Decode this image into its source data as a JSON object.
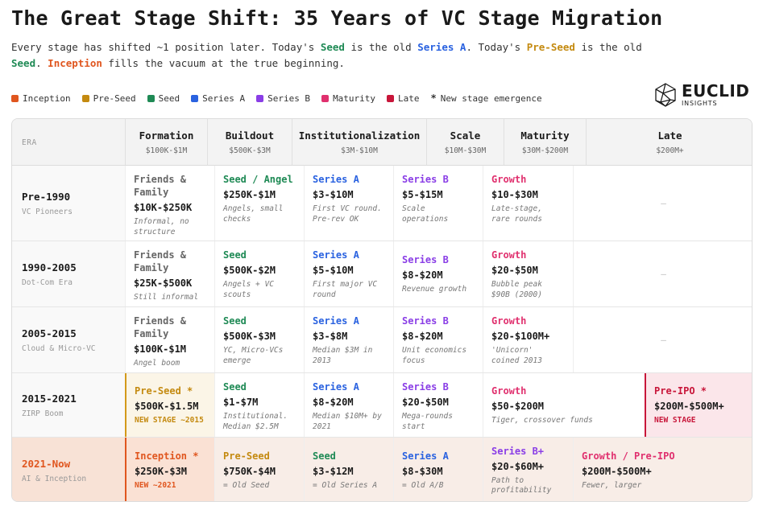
{
  "title": "The Great Stage Shift: 35 Years of VC Stage Migration",
  "subtitle": {
    "p1": "Every stage has shifted ~1 position later. Today's ",
    "seed": "Seed",
    "p2": " is the old ",
    "series_a": "Series A",
    "p3": ". Today's ",
    "pre_seed": "Pre-Seed",
    "p4": " is the old",
    "seed2": "Seed",
    "p5": ". ",
    "inception": "Inception",
    "p6": " fills the vacuum at the true beginning."
  },
  "legend": {
    "items": [
      {
        "label": "Inception",
        "color": "#e0561f"
      },
      {
        "label": "Pre-Seed",
        "color": "#c48a10"
      },
      {
        "label": "Seed",
        "color": "#1f8a55"
      },
      {
        "label": "Series A",
        "color": "#2a62e0"
      },
      {
        "label": "Series B",
        "color": "#8a3ee6"
      },
      {
        "label": "Maturity",
        "color": "#e0306e"
      },
      {
        "label": "Late",
        "color": "#c8163a"
      }
    ],
    "star": "*",
    "star_label": "New stage emergence"
  },
  "logo": {
    "name": "EUCLID",
    "sub": "INSIGHTS"
  },
  "header": {
    "era": "ERA",
    "columns": [
      {
        "name": "Formation",
        "range": "$100K-$1M"
      },
      {
        "name": "Buildout",
        "range": "$500K-$3M"
      },
      {
        "name": "Institutionalization",
        "range": "$3M-$10M"
      },
      {
        "name": "Scale",
        "range": "$10M-$30M"
      },
      {
        "name": "Maturity",
        "range": "$30M-$200M"
      },
      {
        "name": "Late",
        "range": "$200M+"
      }
    ]
  },
  "rows": [
    {
      "era": "Pre-1990",
      "era_sub": "VC Pioneers",
      "cells": [
        {
          "name": "Friends & Family",
          "amount": "$10K-$250K",
          "note": "Informal, no structure"
        },
        {
          "name": "Seed / Angel",
          "amount": "$250K-$1M",
          "note": "Angels, small checks"
        },
        {
          "name": "Series A",
          "amount": "$3-$10M",
          "note": "First VC round. Pre-rev OK"
        },
        {
          "name": "Series B",
          "amount": "$5-$15M",
          "note": "Scale operations"
        },
        {
          "name": "Growth",
          "amount": "$10-$30M",
          "note": "Late-stage, rare rounds"
        }
      ],
      "dash": "—"
    },
    {
      "era": "1990-2005",
      "era_sub": "Dot-Com Era",
      "cells": [
        {
          "name": "Friends & Family",
          "amount": "$25K-$500K",
          "note": "Still informal"
        },
        {
          "name": "Seed",
          "amount": "$500K-$2M",
          "note": "Angels + VC scouts"
        },
        {
          "name": "Series A",
          "amount": "$5-$10M",
          "note": "First major VC round"
        },
        {
          "name": "Series B",
          "amount": "$8-$20M",
          "note": "Revenue growth"
        },
        {
          "name": "Growth",
          "amount": "$20-$50M",
          "note": "Bubble peak $90B (2000)"
        }
      ],
      "dash": "—"
    },
    {
      "era": "2005-2015",
      "era_sub": "Cloud & Micro-VC",
      "cells": [
        {
          "name": "Friends & Family",
          "amount": "$100K-$1M",
          "note": "Angel boom"
        },
        {
          "name": "Seed",
          "amount": "$500K-$3M",
          "note": "YC, Micro-VCs emerge"
        },
        {
          "name": "Series A",
          "amount": "$3-$8M",
          "note": "Median $3M in 2013"
        },
        {
          "name": "Series B",
          "amount": "$8-$20M",
          "note": "Unit economics focus"
        },
        {
          "name": "Growth",
          "amount": "$20-$100M+",
          "note": "'Unicorn' coined 2013"
        }
      ],
      "dash": "—"
    },
    {
      "era": "2015-2021",
      "era_sub": "ZIRP Boom",
      "cells": [
        {
          "name": "Pre-Seed *",
          "amount": "$500K-$1.5M",
          "tag": "NEW STAGE ~2015"
        },
        {
          "name": "Seed",
          "amount": "$1-$7M",
          "note": "Institutional. Median $2.5M"
        },
        {
          "name": "Series A",
          "amount": "$8-$20M",
          "note": "Median $10M+ by 2021"
        },
        {
          "name": "Series B",
          "amount": "$20-$50M",
          "note": "Mega-rounds start"
        },
        {
          "name": "Growth",
          "amount": "$50-$200M",
          "note": "Tiger, crossover funds"
        },
        {
          "name": "Pre-IPO *",
          "amount": "$200M-$500M+",
          "tag": "NEW STAGE"
        }
      ]
    },
    {
      "era": "2021-Now",
      "era_sub": "AI & Inception",
      "cells": [
        {
          "name": "Inception *",
          "amount": "$250K-$3M",
          "tag": "NEW ~2021"
        },
        {
          "name": "Pre-Seed",
          "amount": "$750K-$4M",
          "note": "= Old Seed"
        },
        {
          "name": "Seed",
          "amount": "$3-$12M",
          "note": "= Old Series A"
        },
        {
          "name": "Series A",
          "amount": "$8-$30M",
          "note": "= Old A/B"
        },
        {
          "name": "Series B+",
          "amount": "$20-$60M+",
          "note": "Path to profitability"
        },
        {
          "name": "Growth / Pre-IPO",
          "amount": "$200M-$500M+",
          "note": "Fewer, larger"
        }
      ]
    }
  ]
}
